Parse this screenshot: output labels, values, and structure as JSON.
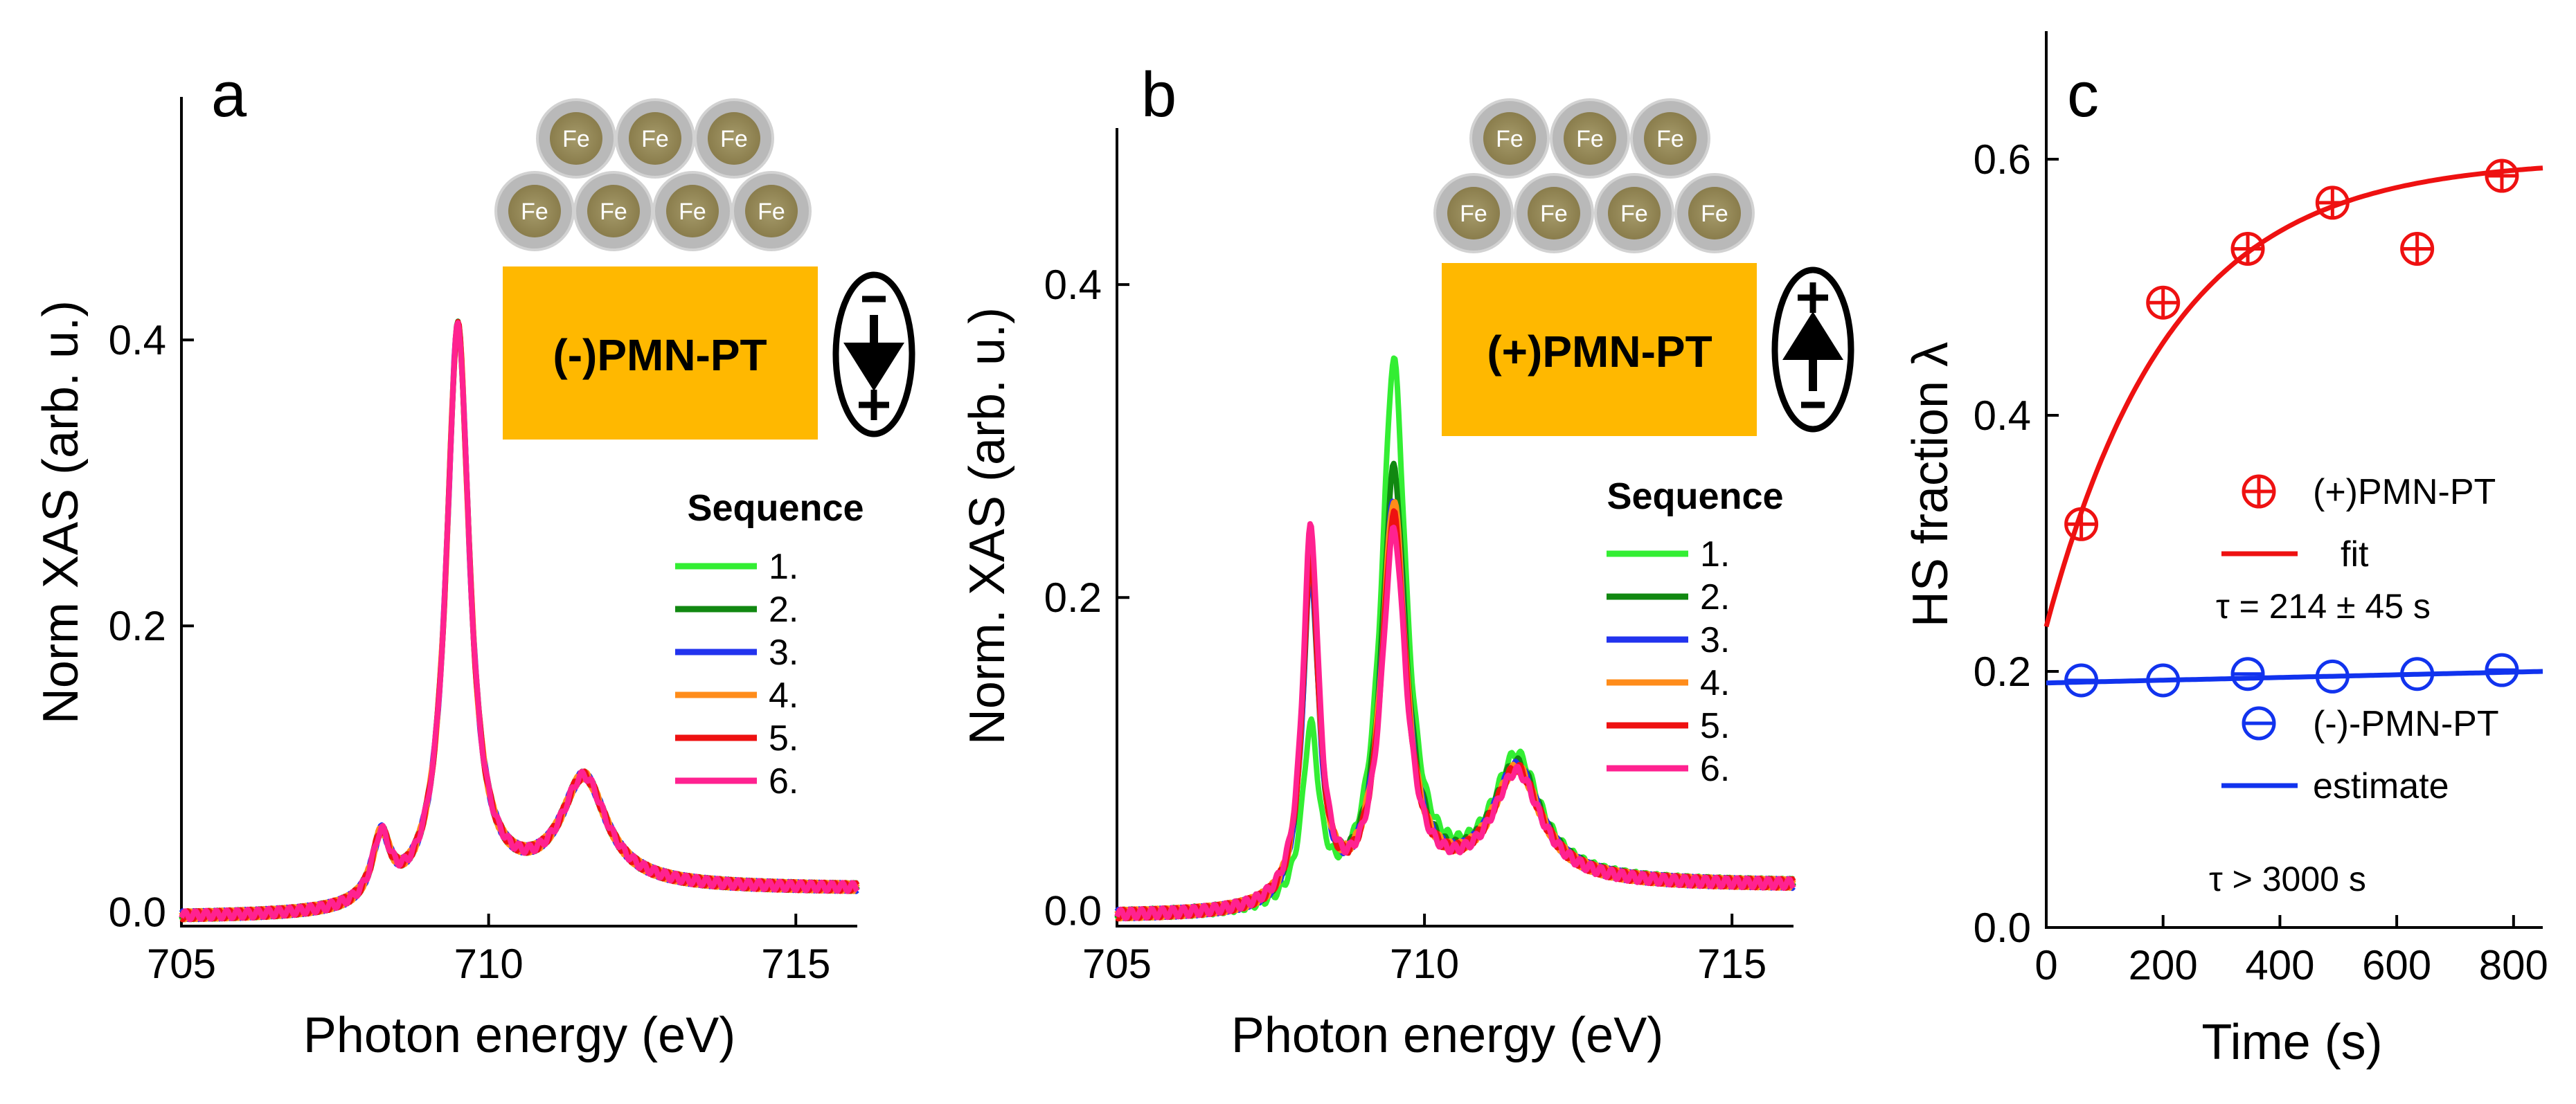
{
  "chart_data": [
    {
      "panel": "a",
      "type": "line",
      "xlabel": "Photon energy (eV)",
      "ylabel": "Norm XAS (arb. u.)",
      "xlim": [
        705,
        716
      ],
      "ylim": [
        -0.01,
        0.57
      ],
      "xticks": [
        "705",
        "710",
        "715"
      ],
      "yticks": [
        "0.0",
        "0.2",
        "0.4"
      ],
      "legend_title": "Sequence",
      "legend_position": "right",
      "series": [
        {
          "name": "1.",
          "color": "#33ee33",
          "scale": 1.0,
          "peaks": [
            [
              708.25,
              0.045,
              0.18
            ],
            [
              709.5,
              0.4,
              0.23
            ],
            [
              711.55,
              0.075,
              0.45
            ]
          ]
        },
        {
          "name": "2.",
          "color": "#118811",
          "scale": 1.0,
          "peaks": [
            [
              708.25,
              0.045,
              0.18
            ],
            [
              709.5,
              0.4,
              0.23
            ],
            [
              711.55,
              0.075,
              0.45
            ]
          ]
        },
        {
          "name": "3.",
          "color": "#2233ee",
          "scale": 1.0,
          "peaks": [
            [
              708.25,
              0.045,
              0.18
            ],
            [
              709.5,
              0.4,
              0.23
            ],
            [
              711.55,
              0.075,
              0.45
            ]
          ]
        },
        {
          "name": "4.",
          "color": "#ff8c1a",
          "scale": 1.0,
          "peaks": [
            [
              708.25,
              0.045,
              0.18
            ],
            [
              709.5,
              0.4,
              0.23
            ],
            [
              711.55,
              0.075,
              0.45
            ]
          ]
        },
        {
          "name": "5.",
          "color": "#ee1111",
          "scale": 1.0,
          "peaks": [
            [
              708.25,
              0.045,
              0.18
            ],
            [
              709.5,
              0.4,
              0.23
            ],
            [
              711.55,
              0.075,
              0.45
            ]
          ]
        },
        {
          "name": "6.",
          "color": "#ff2290",
          "scale": 1.0,
          "peaks": [
            [
              708.25,
              0.045,
              0.18
            ],
            [
              709.5,
              0.4,
              0.23
            ],
            [
              711.55,
              0.075,
              0.45
            ]
          ]
        }
      ],
      "inset_label": "(-)PMN-PT",
      "fe_label": "Fe",
      "arrow_direction": "down"
    },
    {
      "panel": "b",
      "type": "line",
      "xlabel": "Photon energy (eV)",
      "ylabel": "Norm. XAS (arb. u.)",
      "xlim": [
        705,
        716
      ],
      "ylim": [
        -0.01,
        0.5
      ],
      "xticks": [
        "705",
        "710",
        "715"
      ],
      "yticks": [
        "0.0",
        "0.2",
        "0.4"
      ],
      "legend_title": "Sequence",
      "legend_position": "right",
      "series": [
        {
          "name": "1.",
          "color": "#33ee33",
          "peaks": [
            [
              708.15,
              0.11,
              0.16
            ],
            [
              709.5,
              0.34,
              0.24
            ],
            [
              711.5,
              0.08,
              0.48
            ]
          ]
        },
        {
          "name": "2.",
          "color": "#118811",
          "peaks": [
            [
              708.15,
              0.21,
              0.16
            ],
            [
              709.5,
              0.27,
              0.24
            ],
            [
              711.5,
              0.075,
              0.48
            ]
          ]
        },
        {
          "name": "3.",
          "color": "#2233ee",
          "peaks": [
            [
              708.15,
              0.21,
              0.16
            ],
            [
              709.5,
              0.25,
              0.24
            ],
            [
              711.5,
              0.073,
              0.48
            ]
          ]
        },
        {
          "name": "4.",
          "color": "#ff8c1a",
          "peaks": [
            [
              708.15,
              0.22,
              0.16
            ],
            [
              709.5,
              0.25,
              0.24
            ],
            [
              711.5,
              0.072,
              0.48
            ]
          ]
        },
        {
          "name": "5.",
          "color": "#ee1111",
          "peaks": [
            [
              708.15,
              0.22,
              0.16
            ],
            [
              709.5,
              0.24,
              0.24
            ],
            [
              711.5,
              0.072,
              0.48
            ]
          ]
        },
        {
          "name": "6.",
          "color": "#ff2290",
          "peaks": [
            [
              708.15,
              0.24,
              0.16
            ],
            [
              709.5,
              0.23,
              0.24
            ],
            [
              711.5,
              0.07,
              0.48
            ]
          ]
        }
      ],
      "inset_label": "(+)PMN-PT",
      "fe_label": "Fe",
      "arrow_direction": "up"
    },
    {
      "panel": "c",
      "type": "scatter",
      "xlabel": "Time (s)",
      "ylabel": "HS fraction λ",
      "xlim": [
        0,
        850
      ],
      "ylim": [
        0,
        0.7
      ],
      "xticks": [
        "0",
        "200",
        "400",
        "600",
        "800"
      ],
      "yticks": [
        "0.0",
        "0.2",
        "0.4",
        "0.6"
      ],
      "series": [
        {
          "name": "(+)PMN-PT",
          "color": "#ee1111",
          "marker": "circle-plus",
          "x": [
            60,
            200,
            345,
            490,
            635,
            780
          ],
          "y": [
            0.315,
            0.488,
            0.53,
            0.566,
            0.53,
            0.587
          ]
        },
        {
          "name": "(-)-PMN-PT",
          "color": "#1133ee",
          "marker": "circle-minus",
          "x": [
            60,
            200,
            345,
            490,
            635,
            780
          ],
          "y": [
            0.193,
            0.193,
            0.198,
            0.196,
            0.198,
            0.201
          ]
        }
      ],
      "fits": [
        {
          "name": "fit",
          "color": "#ee1111",
          "model": "exponential",
          "y0": 0.235,
          "yinf": 0.6,
          "tau": 214
        },
        {
          "name": "estimate",
          "color": "#1133ee",
          "model": "linear",
          "y_start": 0.191,
          "y_end": 0.2
        }
      ],
      "annotations": [
        "τ = 214 ± 45 s",
        "τ > 3000 s"
      ]
    }
  ]
}
